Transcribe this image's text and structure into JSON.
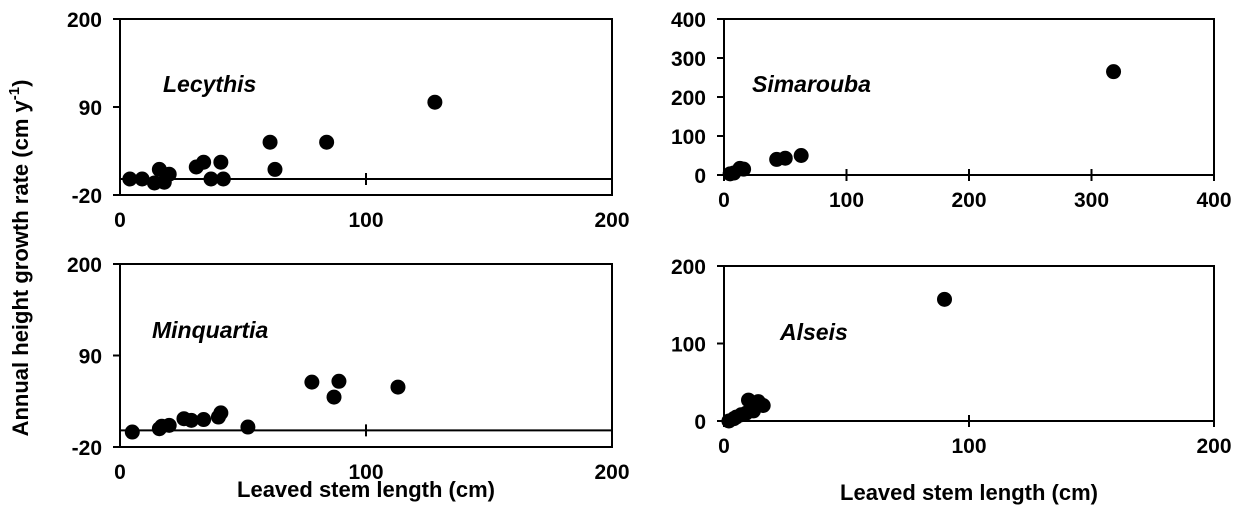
{
  "figure": {
    "ylabel_main": "Annual height growth rate (cm y",
    "ylabel_sup": "-1",
    "ylabel_close": ")"
  },
  "chart_data": [
    {
      "type": "scatter",
      "label": "Lecythis",
      "xlabel": "",
      "ylabel": "",
      "xlim": [
        0,
        200
      ],
      "ylim": [
        -20,
        200
      ],
      "xticks": [
        0,
        100,
        200
      ],
      "yticks": [
        -20,
        90,
        200
      ],
      "reference_line_y": 0,
      "grid": false,
      "x": [
        4,
        9,
        14,
        16,
        18,
        20,
        31,
        34,
        37,
        41,
        42,
        61,
        63,
        84,
        128
      ],
      "y": [
        0,
        0,
        -5,
        12,
        -4,
        6,
        15,
        21,
        0,
        21,
        0,
        46,
        12,
        46,
        96
      ]
    },
    {
      "type": "scatter",
      "label": "Simarouba",
      "xlabel": "",
      "ylabel": "",
      "xlim": [
        0,
        400
      ],
      "ylim": [
        0,
        400
      ],
      "xticks": [
        0,
        100,
        200,
        300,
        400
      ],
      "yticks": [
        0,
        100,
        200,
        300,
        400
      ],
      "reference_line_y": 0,
      "grid": false,
      "x": [
        5,
        8,
        13,
        16,
        43,
        50,
        63,
        318
      ],
      "y": [
        3,
        5,
        17,
        15,
        40,
        43,
        50,
        265
      ]
    },
    {
      "type": "scatter",
      "label": "Minquartia",
      "xlabel": "Leaved stem length (cm)",
      "ylabel": "",
      "xlim": [
        0,
        200
      ],
      "ylim": [
        -20,
        200
      ],
      "xticks": [
        0,
        100,
        200
      ],
      "yticks": [
        -20,
        90,
        200
      ],
      "reference_line_y": 0,
      "grid": false,
      "x": [
        5,
        16,
        17,
        20,
        26,
        29,
        34,
        40,
        41,
        52,
        78,
        87,
        89,
        113
      ],
      "y": [
        -2,
        2,
        5,
        6,
        14,
        12,
        13,
        16,
        21,
        4,
        58,
        40,
        59,
        52
      ]
    },
    {
      "type": "scatter",
      "label": "Alseis",
      "xlabel": "Leaved stem length (cm)",
      "ylabel": "",
      "xlim": [
        0,
        200
      ],
      "ylim": [
        0,
        200
      ],
      "xticks": [
        0,
        100,
        200
      ],
      "yticks": [
        0,
        100,
        200
      ],
      "reference_line_y": 0,
      "grid": false,
      "x": [
        2,
        4,
        5,
        7,
        9,
        10,
        12,
        14,
        16,
        90
      ],
      "y": [
        0,
        3,
        5,
        8,
        10,
        27,
        13,
        25,
        20,
        157
      ]
    }
  ]
}
